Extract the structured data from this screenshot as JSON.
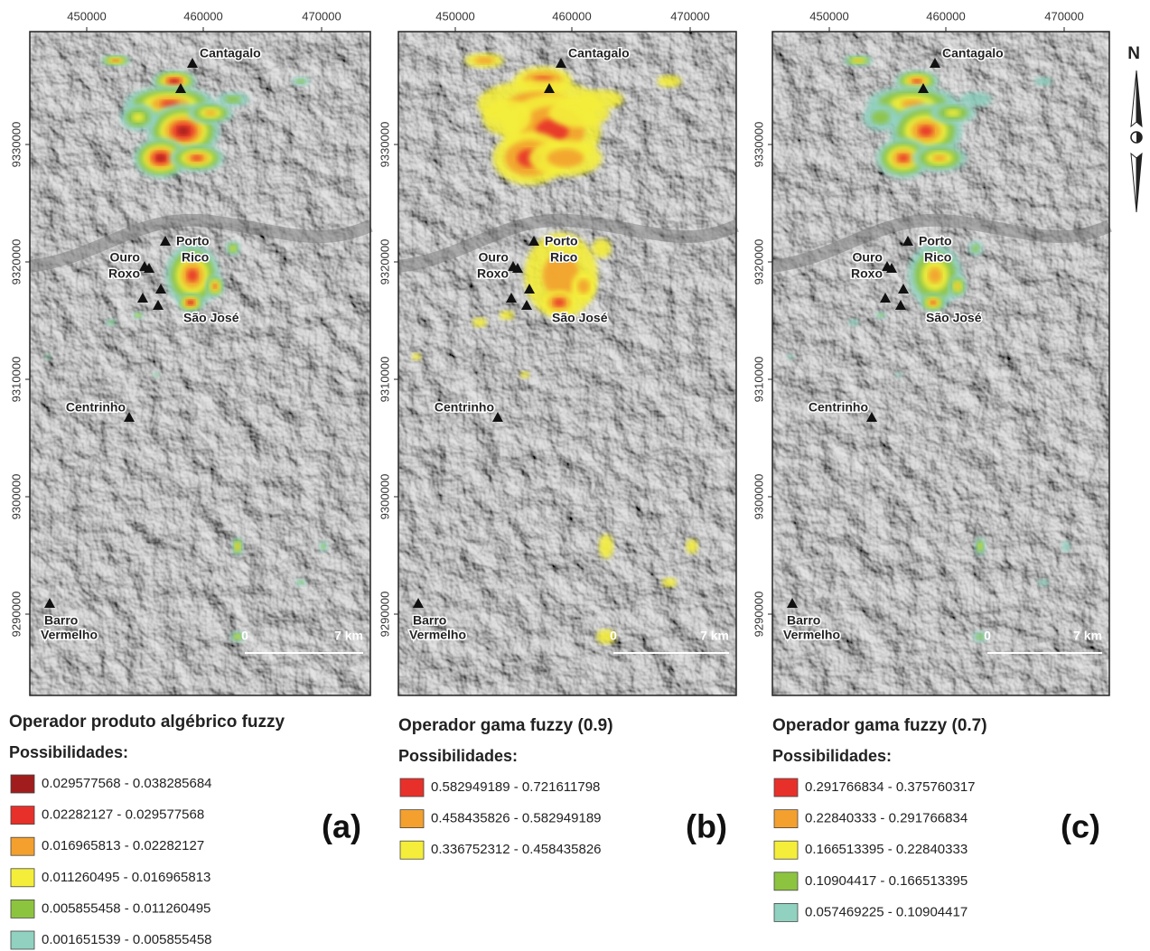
{
  "x_ticks": [
    "450000",
    "460000",
    "470000"
  ],
  "y_ticks": [
    "9330000",
    "9320000",
    "9310000",
    "9300000",
    "9290000"
  ],
  "places": [
    "Cantagalo",
    "Porto",
    "Rico",
    "Ouro",
    "Roxo",
    "São José",
    "Centrinho",
    "Barro",
    "Vermelho"
  ],
  "scale_bar": [
    "0",
    "7 km"
  ],
  "north": "N",
  "panels": [
    {
      "title": "Operador produto algébrico fuzzy",
      "subtitle": "Possibilidades:",
      "label": "(a)",
      "legend": [
        {
          "label": "0.029577568 - 0.038285684",
          "color": "#a11d1d"
        },
        {
          "label": "0.02282127 - 0.029577568",
          "color": "#e8302a"
        },
        {
          "label": "0.016965813 - 0.02282127",
          "color": "#f3a02f"
        },
        {
          "label": "0.011260495 - 0.016965813",
          "color": "#f4ee3a"
        },
        {
          "label": "0.005855458 - 0.011260495",
          "color": "#8dc43f"
        },
        {
          "label": "0.001651539 - 0.005855458",
          "color": "#90d1c0"
        }
      ]
    },
    {
      "title": "Operador gama fuzzy (0.9)",
      "subtitle": "Possibilidades:",
      "label": "(b)",
      "legend": [
        {
          "label": "0.582949189 - 0.721611798",
          "color": "#e8302a"
        },
        {
          "label": "0.458435826 - 0.582949189",
          "color": "#f3a02f"
        },
        {
          "label": "0.336752312 - 0.458435826",
          "color": "#f4ee3a"
        }
      ]
    },
    {
      "title": "Operador gama fuzzy (0.7)",
      "subtitle": "Possibilidades:",
      "label": "(c)",
      "legend": [
        {
          "label": "0.291766834 - 0.375760317",
          "color": "#e8302a"
        },
        {
          "label": "0.22840333 - 0.291766834",
          "color": "#f3a02f"
        },
        {
          "label": "0.166513395 - 0.22840333",
          "color": "#f4ee3a"
        },
        {
          "label": "0.10904417 - 0.166513395",
          "color": "#8dc43f"
        },
        {
          "label": "0.057469225 - 0.10904417",
          "color": "#90d1c0"
        }
      ]
    }
  ]
}
